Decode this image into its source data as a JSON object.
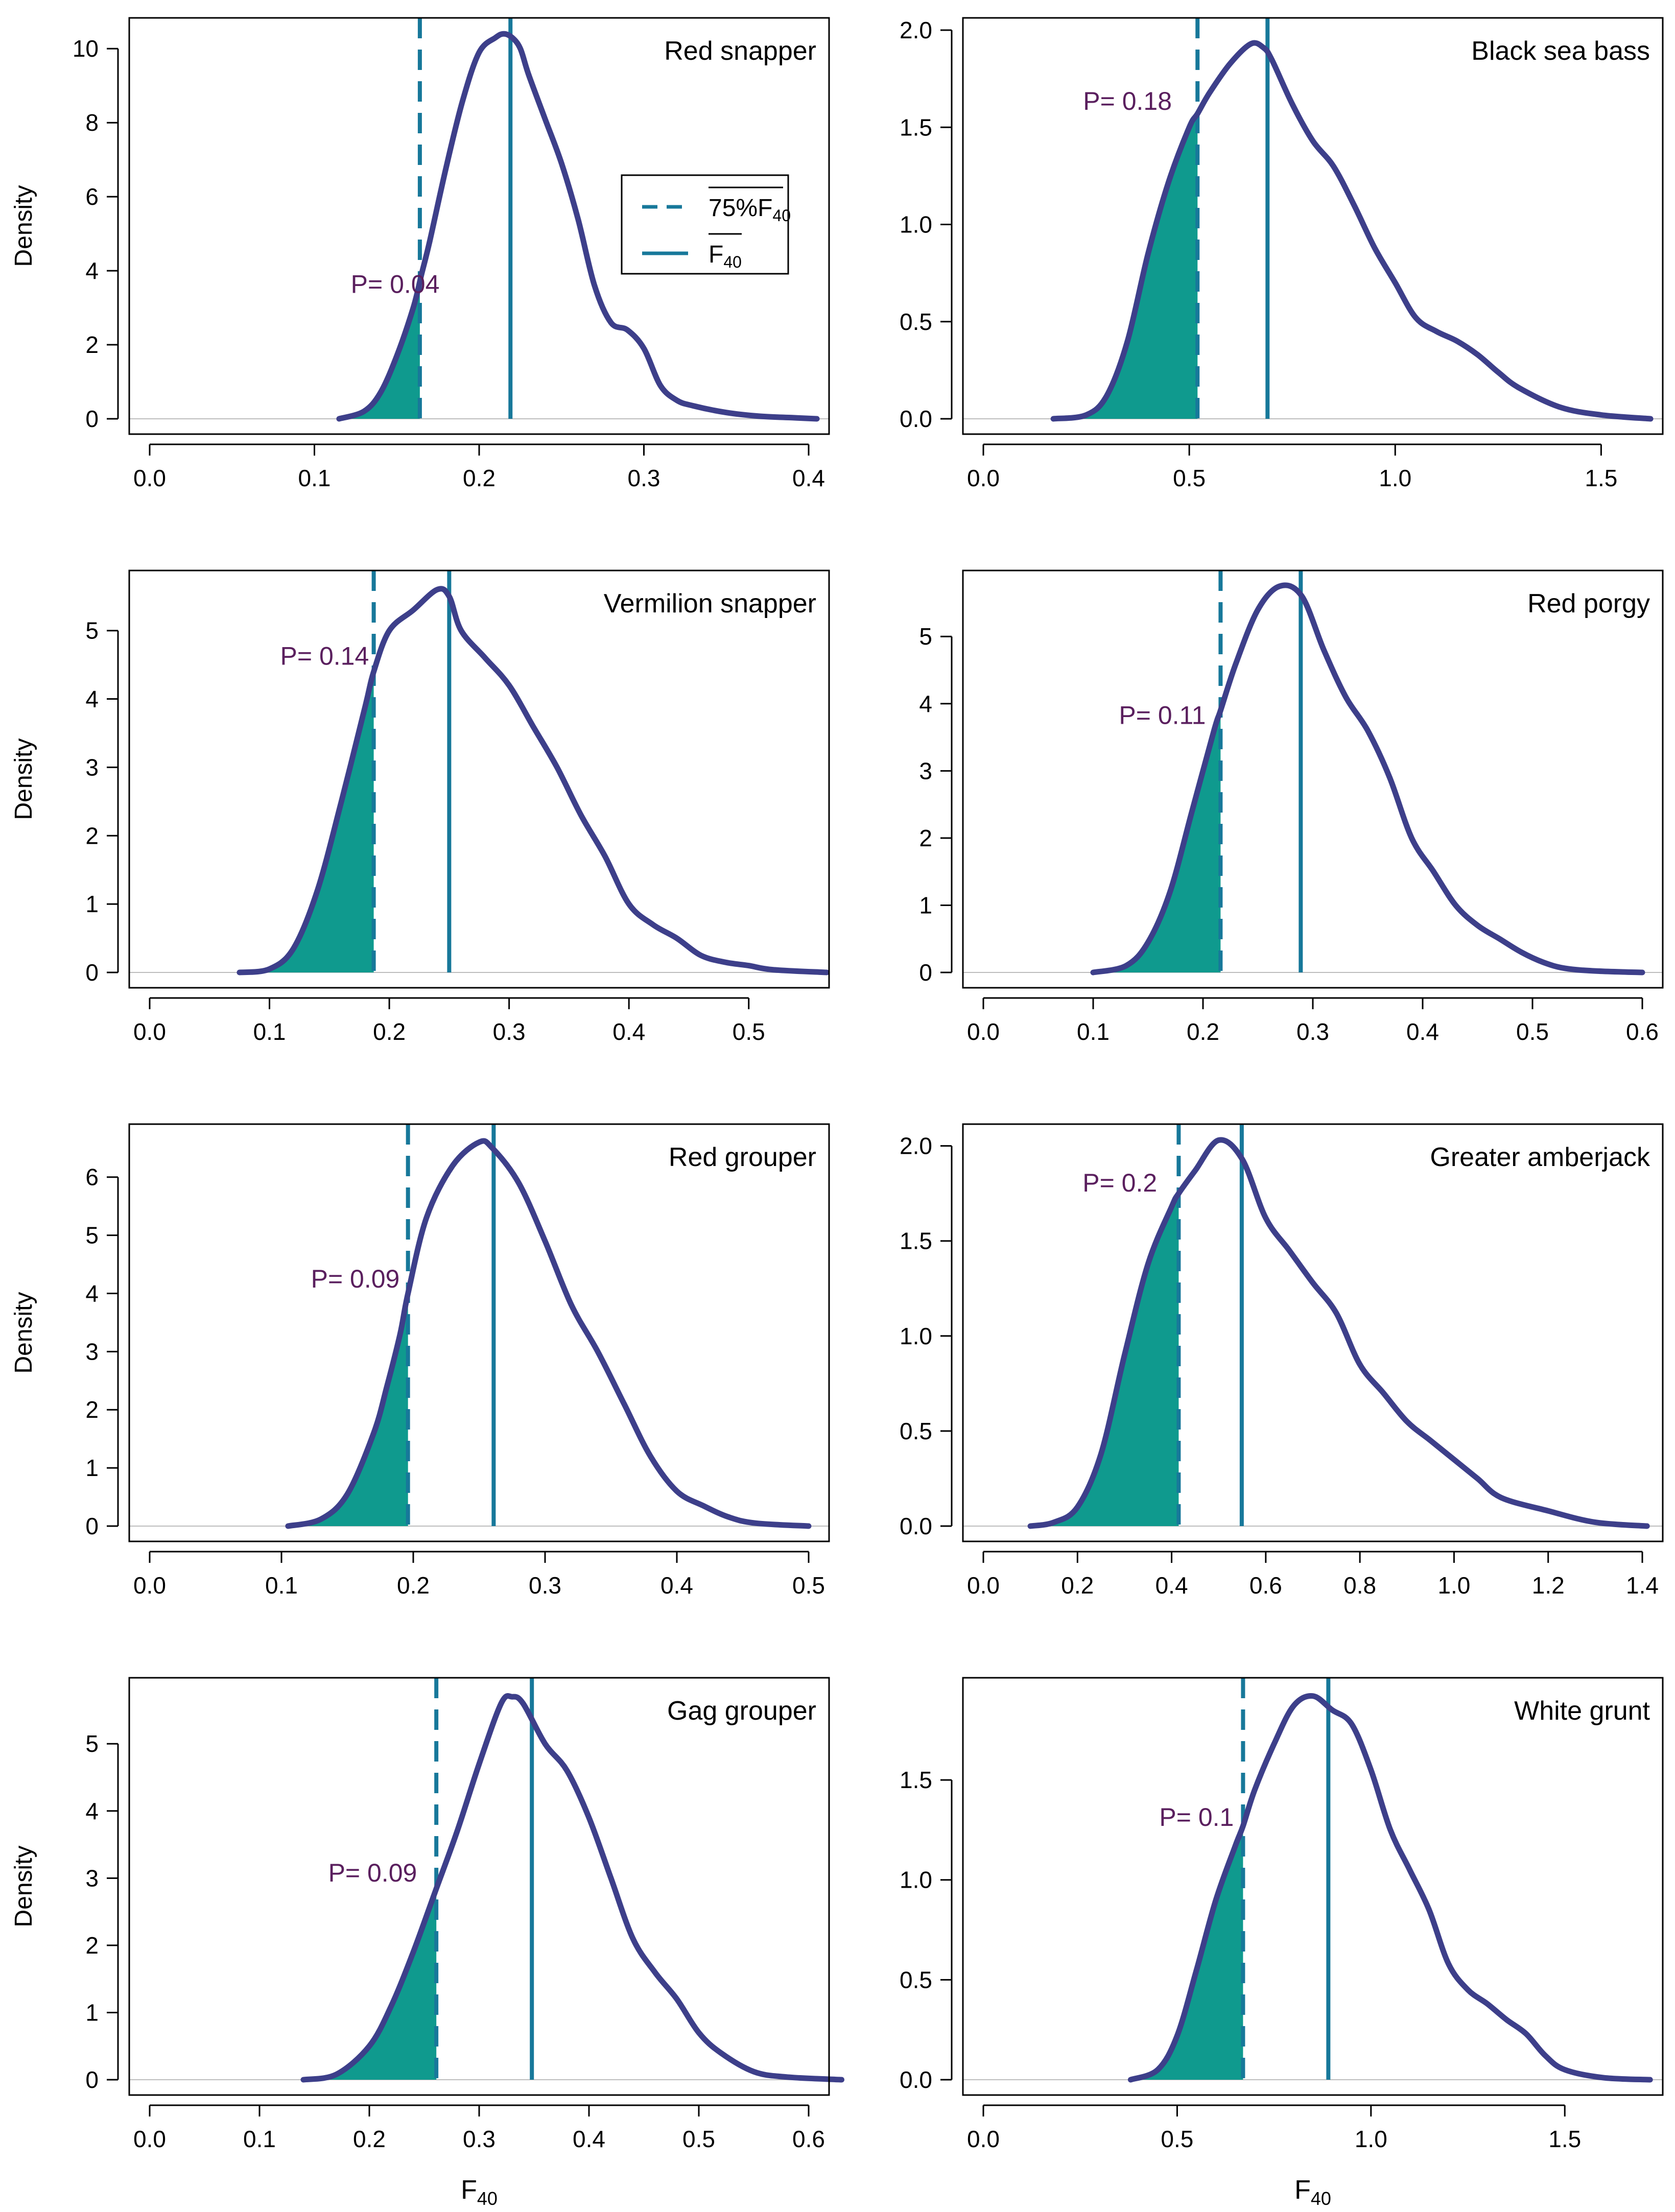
{
  "figure": {
    "ylabel": "Density",
    "xlabel_main": "F",
    "xlabel_sub": "40",
    "legend": {
      "dashed_label_prefix": "75%",
      "dashed_label_main": "F",
      "dashed_label_sub": "40",
      "solid_label_main": "F",
      "solid_label_sub": "40"
    },
    "colors": {
      "density_curve": "#3d3f8a",
      "shade": "#0f9a8e",
      "ref_line": "#17789a",
      "p_label": "#5a1f5e",
      "frame": "#000000",
      "zero_line": "#bdbdbd"
    }
  },
  "chart_data": [
    {
      "type": "density",
      "title": "Red snapper",
      "xlim": [
        0,
        0.4
      ],
      "ylim": [
        0,
        10.5
      ],
      "xticks": [
        0.0,
        0.1,
        0.2,
        0.3,
        0.4
      ],
      "xtick_labels": [
        "0.0",
        "0.1",
        "0.2",
        "0.3",
        "0.4"
      ],
      "yticks": [
        0,
        2,
        4,
        6,
        8,
        10
      ],
      "ytick_labels": [
        "0",
        "2",
        "4",
        "6",
        "8",
        "10"
      ],
      "x": [
        0.115,
        0.13,
        0.14,
        0.15,
        0.16,
        0.165,
        0.17,
        0.18,
        0.19,
        0.2,
        0.21,
        0.215,
        0.22,
        0.225,
        0.23,
        0.24,
        0.25,
        0.26,
        0.27,
        0.28,
        0.29,
        0.3,
        0.31,
        0.32,
        0.33,
        0.35,
        0.37,
        0.39,
        0.405
      ],
      "y": [
        0,
        0.2,
        0.7,
        1.7,
        3.0,
        3.9,
        4.8,
        6.8,
        8.6,
        9.9,
        10.3,
        10.4,
        10.3,
        10.0,
        9.3,
        8.1,
        6.9,
        5.4,
        3.6,
        2.6,
        2.4,
        1.9,
        0.9,
        0.5,
        0.35,
        0.17,
        0.07,
        0.03,
        0
      ],
      "dashed": 0.164,
      "solid": 0.219,
      "p_label": "P= 0.04",
      "p_at": [
        0.149,
        3.4
      ],
      "show_legend": true
    },
    {
      "type": "density",
      "title": "Black sea bass",
      "xlim": [
        0,
        1.6
      ],
      "ylim": [
        0,
        2.0
      ],
      "xticks": [
        0.0,
        0.5,
        1.0,
        1.5
      ],
      "xtick_labels": [
        "0.0",
        "0.5",
        "1.0",
        "1.5"
      ],
      "yticks": [
        0,
        0.5,
        1.0,
        1.5,
        2.0
      ],
      "ytick_labels": [
        "0.0",
        "0.5",
        "1.0",
        "1.5",
        "2.0"
      ],
      "x": [
        0.17,
        0.25,
        0.3,
        0.35,
        0.4,
        0.45,
        0.5,
        0.52,
        0.55,
        0.6,
        0.65,
        0.68,
        0.7,
        0.75,
        0.8,
        0.85,
        0.9,
        0.95,
        1.0,
        1.05,
        1.1,
        1.15,
        1.2,
        1.25,
        1.3,
        1.4,
        1.5,
        1.62
      ],
      "y": [
        0,
        0.02,
        0.12,
        0.4,
        0.85,
        1.22,
        1.5,
        1.57,
        1.68,
        1.83,
        1.93,
        1.91,
        1.85,
        1.62,
        1.43,
        1.3,
        1.1,
        0.88,
        0.7,
        0.52,
        0.45,
        0.4,
        0.33,
        0.24,
        0.16,
        0.06,
        0.02,
        0
      ],
      "dashed": 0.52,
      "solid": 0.69,
      "p_label": "P= 0.18",
      "p_at": [
        0.35,
        1.59
      ],
      "show_legend": false
    },
    {
      "type": "density",
      "title": "Vermilion snapper",
      "xlim": [
        0,
        0.55
      ],
      "ylim": [
        0,
        5.7
      ],
      "xticks": [
        0.0,
        0.1,
        0.2,
        0.3,
        0.4,
        0.5
      ],
      "xtick_labels": [
        "0.0",
        "0.1",
        "0.2",
        "0.3",
        "0.4",
        "0.5"
      ],
      "yticks": [
        0,
        1,
        2,
        3,
        4,
        5
      ],
      "ytick_labels": [
        "0",
        "1",
        "2",
        "3",
        "4",
        "5"
      ],
      "x": [
        0.075,
        0.1,
        0.12,
        0.14,
        0.16,
        0.18,
        0.187,
        0.2,
        0.22,
        0.24,
        0.25,
        0.26,
        0.28,
        0.3,
        0.32,
        0.34,
        0.36,
        0.38,
        0.4,
        0.42,
        0.44,
        0.46,
        0.48,
        0.5,
        0.52,
        0.565
      ],
      "y": [
        0,
        0.05,
        0.35,
        1.2,
        2.5,
        3.9,
        4.4,
        5.0,
        5.3,
        5.6,
        5.5,
        5.0,
        4.6,
        4.2,
        3.6,
        3.0,
        2.3,
        1.7,
        1.0,
        0.7,
        0.5,
        0.25,
        0.15,
        0.1,
        0.04,
        0
      ],
      "dashed": 0.187,
      "solid": 0.25,
      "p_label": "P= 0.14",
      "p_at": [
        0.146,
        4.5
      ],
      "show_legend": false
    },
    {
      "type": "density",
      "title": "Red porgy",
      "xlim": [
        0,
        0.6
      ],
      "ylim": [
        0,
        5.8
      ],
      "xticks": [
        0.0,
        0.1,
        0.2,
        0.3,
        0.4,
        0.5,
        0.6
      ],
      "xtick_labels": [
        "0.0",
        "0.1",
        "0.2",
        "0.3",
        "0.4",
        "0.5",
        "0.6"
      ],
      "yticks": [
        0,
        1,
        2,
        3,
        4,
        5
      ],
      "ytick_labels": [
        "0",
        "1",
        "2",
        "3",
        "4",
        "5"
      ],
      "x": [
        0.1,
        0.13,
        0.15,
        0.17,
        0.19,
        0.21,
        0.216,
        0.23,
        0.25,
        0.27,
        0.29,
        0.31,
        0.33,
        0.35,
        0.37,
        0.39,
        0.41,
        0.43,
        0.45,
        0.47,
        0.49,
        0.51,
        0.53,
        0.56,
        0.6
      ],
      "y": [
        0,
        0.1,
        0.45,
        1.2,
        2.4,
        3.6,
        3.9,
        4.6,
        5.4,
        5.75,
        5.6,
        4.8,
        4.1,
        3.6,
        2.9,
        2.0,
        1.5,
        1.0,
        0.7,
        0.5,
        0.3,
        0.15,
        0.06,
        0.02,
        0
      ],
      "dashed": 0.216,
      "solid": 0.289,
      "p_label": "P= 0.11",
      "p_at": [
        0.163,
        3.7
      ],
      "show_legend": false
    },
    {
      "type": "density",
      "title": "Red grouper",
      "xlim": [
        0,
        0.5
      ],
      "ylim": [
        0,
        6.7
      ],
      "xticks": [
        0.0,
        0.1,
        0.2,
        0.3,
        0.4,
        0.5
      ],
      "xtick_labels": [
        "0.0",
        "0.1",
        "0.2",
        "0.3",
        "0.4",
        "0.5"
      ],
      "yticks": [
        0,
        1,
        2,
        3,
        4,
        5,
        6
      ],
      "ytick_labels": [
        "0",
        "1",
        "2",
        "3",
        "4",
        "5",
        "6"
      ],
      "x": [
        0.105,
        0.13,
        0.15,
        0.17,
        0.18,
        0.19,
        0.196,
        0.21,
        0.23,
        0.25,
        0.26,
        0.28,
        0.3,
        0.32,
        0.34,
        0.36,
        0.38,
        0.4,
        0.42,
        0.44,
        0.46,
        0.5
      ],
      "y": [
        0,
        0.12,
        0.55,
        1.6,
        2.4,
        3.3,
        4.0,
        5.3,
        6.2,
        6.6,
        6.5,
        5.9,
        4.9,
        3.8,
        3.0,
        2.1,
        1.2,
        0.6,
        0.35,
        0.15,
        0.05,
        0
      ],
      "dashed": 0.196,
      "solid": 0.261,
      "p_label": "P= 0.09",
      "p_at": [
        0.156,
        4.1
      ],
      "show_legend": false
    },
    {
      "type": "density",
      "title": "Greater amberjack",
      "xlim": [
        0,
        1.4
      ],
      "ylim": [
        0,
        2.05
      ],
      "xticks": [
        0.0,
        0.2,
        0.4,
        0.6,
        0.8,
        1.0,
        1.2,
        1.4
      ],
      "xtick_labels": [
        "0.0",
        "0.2",
        "0.4",
        "0.6",
        "0.8",
        "1.0",
        "1.2",
        "1.4"
      ],
      "yticks": [
        0,
        0.5,
        1.0,
        1.5,
        2.0
      ],
      "ytick_labels": [
        "0.0",
        "0.5",
        "1.0",
        "1.5",
        "2.0"
      ],
      "x": [
        0.1,
        0.15,
        0.2,
        0.25,
        0.3,
        0.35,
        0.4,
        0.415,
        0.45,
        0.5,
        0.55,
        0.6,
        0.65,
        0.7,
        0.75,
        0.8,
        0.85,
        0.9,
        0.95,
        1.0,
        1.05,
        1.1,
        1.2,
        1.3,
        1.41
      ],
      "y": [
        0,
        0.02,
        0.1,
        0.38,
        0.9,
        1.38,
        1.68,
        1.75,
        1.87,
        2.03,
        1.93,
        1.62,
        1.45,
        1.28,
        1.12,
        0.85,
        0.7,
        0.55,
        0.45,
        0.35,
        0.25,
        0.15,
        0.08,
        0.02,
        0
      ],
      "dashed": 0.415,
      "solid": 0.549,
      "p_label": "P= 0.2",
      "p_at": [
        0.29,
        1.76
      ],
      "show_legend": false
    },
    {
      "type": "density",
      "title": "Gag grouper",
      "xlim": [
        0,
        0.6
      ],
      "ylim": [
        0,
        5.8
      ],
      "xticks": [
        0.0,
        0.1,
        0.2,
        0.3,
        0.4,
        0.5,
        0.6
      ],
      "xtick_labels": [
        "0.0",
        "0.1",
        "0.2",
        "0.3",
        "0.4",
        "0.5",
        "0.6"
      ],
      "yticks": [
        0,
        1,
        2,
        3,
        4,
        5
      ],
      "ytick_labels": [
        "0",
        "1",
        "2",
        "3",
        "4",
        "5"
      ],
      "x": [
        0.14,
        0.17,
        0.2,
        0.22,
        0.24,
        0.26,
        0.28,
        0.3,
        0.32,
        0.33,
        0.34,
        0.36,
        0.38,
        0.4,
        0.42,
        0.44,
        0.46,
        0.48,
        0.5,
        0.52,
        0.55,
        0.58,
        0.63
      ],
      "y": [
        0,
        0.08,
        0.5,
        1.1,
        1.9,
        2.8,
        3.7,
        4.7,
        5.6,
        5.7,
        5.6,
        5.0,
        4.6,
        3.9,
        3.0,
        2.1,
        1.6,
        1.2,
        0.7,
        0.4,
        0.12,
        0.04,
        0
      ],
      "dashed": 0.261,
      "solid": 0.348,
      "p_label": "P= 0.09",
      "p_at": [
        0.203,
        2.95
      ],
      "show_legend": false
    },
    {
      "type": "density",
      "title": "White grunt",
      "xlim": [
        0,
        1.7
      ],
      "ylim": [
        0,
        1.95
      ],
      "xticks": [
        0.0,
        0.5,
        1.0,
        1.5
      ],
      "xtick_labels": [
        "0.0",
        "0.5",
        "1.0",
        "1.5"
      ],
      "yticks": [
        0,
        0.5,
        1.0,
        1.5
      ],
      "ytick_labels": [
        "0.0",
        "0.5",
        "1.0",
        "1.5"
      ],
      "x": [
        0.38,
        0.45,
        0.5,
        0.55,
        0.6,
        0.65,
        0.67,
        0.7,
        0.75,
        0.8,
        0.85,
        0.9,
        0.95,
        1.0,
        1.05,
        1.1,
        1.15,
        1.2,
        1.25,
        1.3,
        1.35,
        1.4,
        1.45,
        1.5,
        1.6,
        1.72
      ],
      "y": [
        0,
        0.05,
        0.22,
        0.55,
        0.9,
        1.17,
        1.27,
        1.45,
        1.68,
        1.87,
        1.92,
        1.85,
        1.78,
        1.55,
        1.25,
        1.05,
        0.85,
        0.58,
        0.45,
        0.38,
        0.3,
        0.23,
        0.12,
        0.05,
        0.01,
        0
      ],
      "dashed": 0.67,
      "solid": 0.89,
      "p_label": "P= 0.1",
      "p_at": [
        0.55,
        1.27
      ],
      "show_legend": false
    }
  ]
}
